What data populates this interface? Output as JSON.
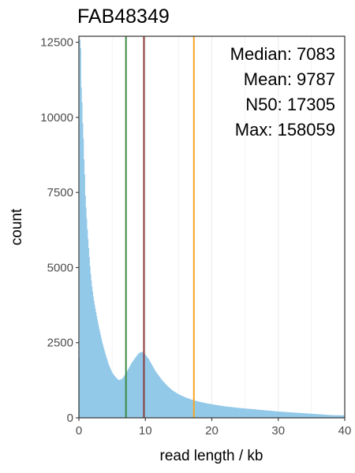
{
  "chart_data": {
    "type": "bar",
    "title": "FAB48349",
    "xlabel": "read length / kb",
    "ylabel": "count",
    "xlim": [
      0,
      40
    ],
    "ylim": [
      0,
      12700
    ],
    "x_ticks": [
      0,
      10,
      20,
      30,
      40
    ],
    "y_ticks": [
      0,
      2500,
      5000,
      7500,
      10000,
      12500
    ],
    "grid": "vertical major and minor lines",
    "bar_color": "#92c8e8",
    "histogram": {
      "description": "read length distribution, bins in kb",
      "x": [
        0.05,
        0.15,
        0.25,
        0.35,
        0.45,
        0.55,
        0.65,
        0.75,
        0.85,
        0.95,
        1.1,
        1.3,
        1.5,
        1.7,
        1.9,
        2.2,
        2.6,
        3.0,
        3.5,
        4.0,
        4.5,
        5.0,
        5.5,
        6.0,
        6.5,
        7.0,
        7.5,
        8.0,
        8.5,
        9.0,
        9.5,
        10.0,
        10.5,
        11.0,
        11.5,
        12.0,
        12.5,
        13.0,
        13.5,
        14.0,
        15.0,
        16.0,
        17.0,
        18.0,
        19.0,
        20.0,
        22.0,
        24.0,
        26.0,
        28.0,
        30.0,
        32.0,
        34.0,
        36.0,
        38.0,
        40.0
      ],
      "y": [
        2000,
        12600,
        12300,
        11000,
        10500,
        9800,
        9300,
        8600,
        8100,
        7400,
        6800,
        6100,
        5500,
        4900,
        4450,
        3950,
        3450,
        3000,
        2500,
        2100,
        1750,
        1500,
        1350,
        1250,
        1300,
        1450,
        1650,
        1850,
        2000,
        2150,
        2200,
        2100,
        1950,
        1750,
        1550,
        1400,
        1250,
        1130,
        1020,
        920,
        780,
        680,
        600,
        540,
        490,
        450,
        380,
        330,
        290,
        250,
        210,
        180,
        150,
        120,
        90,
        80
      ]
    },
    "vlines": [
      {
        "name": "Median",
        "x": 7.083,
        "color": "#3b8a3f"
      },
      {
        "name": "Mean",
        "x": 9.787,
        "color": "#8b3a3a"
      },
      {
        "name": "N50",
        "x": 17.305,
        "color": "#f5a623"
      }
    ],
    "annotations": [
      "Median: 7083",
      "Mean: 9787",
      "N50: 17305",
      "Max: 158059"
    ]
  }
}
